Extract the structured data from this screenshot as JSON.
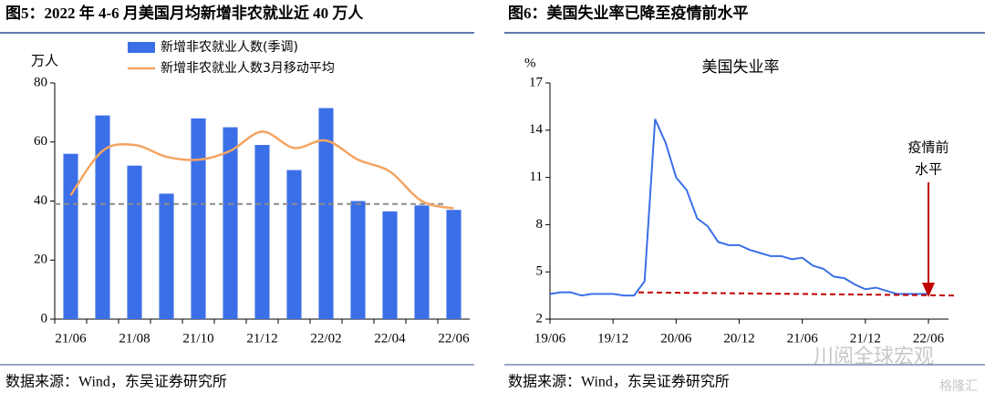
{
  "chart_data": [
    {
      "type": "bar_line",
      "title": "图5：2022 年 4-6 月美国月均新增非农就业近 40 万人",
      "y_label": "万人",
      "source": "数据来源：Wind，东吴证券研究所",
      "categories": [
        "21/06",
        null,
        "21/08",
        null,
        "21/10",
        null,
        "21/12",
        null,
        "22/02",
        null,
        "22/04",
        null,
        "22/06"
      ],
      "series": [
        {
          "name": "新增非农就业人数(季调)",
          "kind": "bar",
          "color": "#3b6fe8",
          "values": [
            56,
            69,
            52,
            42.5,
            68,
            65,
            59,
            50.5,
            71.5,
            40,
            36.5,
            38.5,
            37
          ]
        },
        {
          "name": "新增非农就业人数3月移动平均",
          "kind": "line",
          "color": "#f4a460",
          "values": [
            42,
            57,
            59,
            55,
            54,
            57,
            63.5,
            58,
            60.5,
            54,
            50,
            40,
            37.5
          ]
        }
      ],
      "reference_line": {
        "value": 39,
        "color": "#8c8c8c"
      },
      "ylim": [
        0,
        80
      ],
      "yticks": [
        0,
        20,
        40,
        60,
        80
      ]
    },
    {
      "type": "line",
      "title": "图6：美国失业率已降至疫情前水平",
      "subtitle": "美国失业率",
      "y_label": "%",
      "source": "数据来源：Wind，东吴证券研究所",
      "categories": [
        "19/06",
        null,
        null,
        null,
        null,
        null,
        "19/12",
        null,
        null,
        null,
        null,
        null,
        "20/06",
        null,
        null,
        null,
        null,
        null,
        "20/12",
        null,
        null,
        null,
        null,
        null,
        "21/06",
        null,
        null,
        null,
        null,
        null,
        "21/12",
        null,
        null,
        null,
        null,
        null,
        "22/06"
      ],
      "series": [
        {
          "name": "美国失业率",
          "color": "#3b6fe8",
          "values": [
            3.6,
            3.7,
            3.7,
            3.5,
            3.6,
            3.6,
            3.6,
            3.5,
            3.5,
            4.4,
            14.7,
            13.2,
            11.0,
            10.2,
            8.4,
            7.9,
            6.9,
            6.7,
            6.7,
            6.4,
            6.2,
            6.0,
            6.0,
            5.8,
            5.9,
            5.4,
            5.2,
            4.7,
            4.6,
            4.2,
            3.9,
            4.0,
            3.8,
            3.6,
            3.6,
            3.6,
            3.6
          ]
        }
      ],
      "reference_line": {
        "start_value": 3.7,
        "end_value": 3.5,
        "color": "#c00000"
      },
      "annotation": {
        "lines": [
          "疫情前",
          "水平"
        ],
        "color": "#c00000"
      },
      "watermark": [
        "川阅全球宏观",
        "格隆汇"
      ],
      "ylim": [
        2,
        17
      ],
      "yticks": [
        2,
        5,
        8,
        11,
        14,
        17
      ]
    }
  ]
}
